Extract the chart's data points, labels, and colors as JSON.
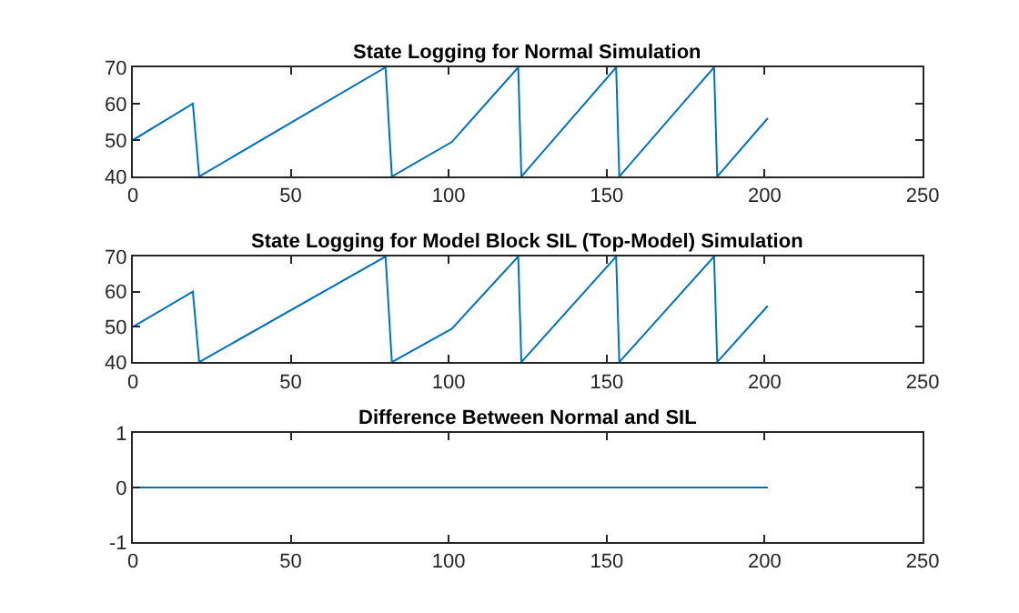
{
  "chart_data": [
    {
      "type": "line",
      "title": "State Logging for Normal Simulation",
      "x": [
        0,
        19,
        21,
        80,
        82,
        101,
        122,
        123,
        153,
        154,
        184,
        185,
        201
      ],
      "series": [
        {
          "color": "#0072bd",
          "values": [
            50,
            60,
            40,
            70,
            40,
            49.5,
            70,
            40,
            70,
            40,
            70,
            40,
            56
          ]
        }
      ],
      "xlim": [
        0,
        250
      ],
      "xticks": [
        0,
        50,
        100,
        150,
        200,
        250
      ],
      "ylim": [
        40,
        70
      ],
      "yticks": [
        40,
        50,
        60,
        70
      ]
    },
    {
      "type": "line",
      "title": "State Logging for Model Block SIL (Top-Model) Simulation",
      "x": [
        0,
        19,
        21,
        80,
        82,
        101,
        122,
        123,
        153,
        154,
        184,
        185,
        201
      ],
      "series": [
        {
          "color": "#0072bd",
          "values": [
            50,
            60,
            40,
            70,
            40,
            49.5,
            70,
            40,
            70,
            40,
            70,
            40,
            56
          ]
        }
      ],
      "xlim": [
        0,
        250
      ],
      "xticks": [
        0,
        50,
        100,
        150,
        200,
        250
      ],
      "ylim": [
        40,
        70
      ],
      "yticks": [
        40,
        50,
        60,
        70
      ]
    },
    {
      "type": "line",
      "title": "Difference Between Normal and SIL",
      "x": [
        0,
        201
      ],
      "series": [
        {
          "color": "#0072bd",
          "values": [
            0,
            0
          ]
        }
      ],
      "xlim": [
        0,
        250
      ],
      "xticks": [
        0,
        50,
        100,
        150,
        200,
        250
      ],
      "ylim": [
        -1,
        1
      ],
      "yticks": [
        -1,
        0,
        1
      ]
    }
  ]
}
